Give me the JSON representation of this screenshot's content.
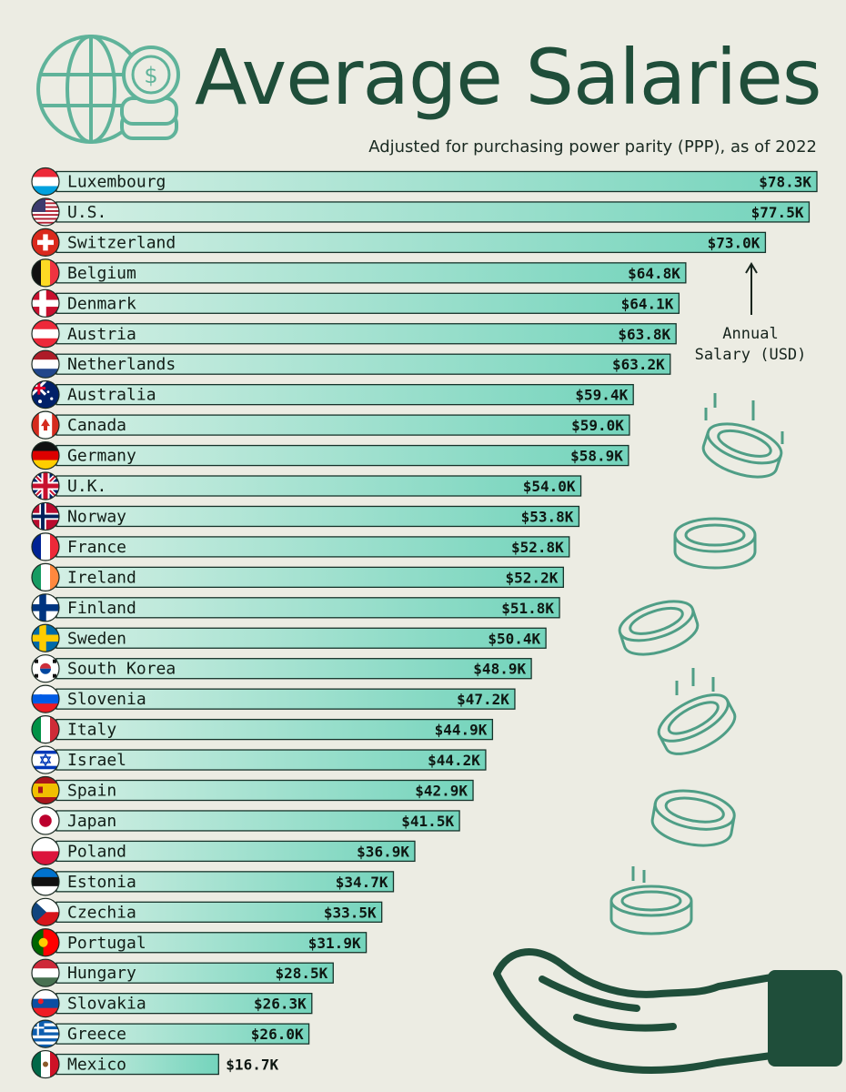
{
  "header": {
    "title": "Average Salaries",
    "subtitle": "Adjusted for purchasing power parity (PPP), as of 2022"
  },
  "annotation": {
    "line1": "Annual",
    "line2": "Salary (USD)"
  },
  "colors": {
    "bar_start": "#d3efe4",
    "bar_end": "#74d4bc",
    "bar_outline": "#16332a",
    "title": "#1f4e3a",
    "background": "#ecece3",
    "decor": "#4f9e86"
  },
  "chart_data": {
    "type": "bar",
    "orientation": "horizontal",
    "title": "Average Salaries",
    "subtitle": "Adjusted for purchasing power parity (PPP), as of 2022",
    "xlabel": "Annual Salary (USD)",
    "ylabel": "",
    "unit": "thousand USD",
    "xlim": [
      0,
      78.3
    ],
    "grid": false,
    "legend": "none",
    "categories": [
      "Luxembourg",
      "U.S.",
      "Switzerland",
      "Belgium",
      "Denmark",
      "Austria",
      "Netherlands",
      "Australia",
      "Canada",
      "Germany",
      "U.K.",
      "Norway",
      "France",
      "Ireland",
      "Finland",
      "Sweden",
      "South Korea",
      "Slovenia",
      "Italy",
      "Israel",
      "Spain",
      "Japan",
      "Poland",
      "Estonia",
      "Czechia",
      "Portugal",
      "Hungary",
      "Slovakia",
      "Greece",
      "Mexico"
    ],
    "values": [
      78.3,
      77.5,
      73.0,
      64.8,
      64.1,
      63.8,
      63.2,
      59.4,
      59.0,
      58.9,
      54.0,
      53.8,
      52.8,
      52.2,
      51.8,
      50.4,
      48.9,
      47.2,
      44.9,
      44.2,
      42.9,
      41.5,
      36.9,
      34.7,
      33.5,
      31.9,
      28.5,
      26.3,
      26.0,
      16.7
    ],
    "value_labels": [
      "$78.3K",
      "$77.5K",
      "$73.0K",
      "$64.8K",
      "$64.1K",
      "$63.8K",
      "$63.2K",
      "$59.4K",
      "$59.0K",
      "$58.9K",
      "$54.0K",
      "$53.8K",
      "$52.8K",
      "$52.2K",
      "$51.8K",
      "$50.4K",
      "$48.9K",
      "$47.2K",
      "$44.9K",
      "$44.2K",
      "$42.9K",
      "$41.5K",
      "$36.9K",
      "$34.7K",
      "$33.5K",
      "$31.9K",
      "$28.5K",
      "$26.3K",
      "$26.0K",
      "$16.7K"
    ],
    "flag_icons": [
      "luxembourg-flag-icon",
      "us-flag-icon",
      "switzerland-flag-icon",
      "belgium-flag-icon",
      "denmark-flag-icon",
      "austria-flag-icon",
      "netherlands-flag-icon",
      "australia-flag-icon",
      "canada-flag-icon",
      "germany-flag-icon",
      "uk-flag-icon",
      "norway-flag-icon",
      "france-flag-icon",
      "ireland-flag-icon",
      "finland-flag-icon",
      "sweden-flag-icon",
      "south-korea-flag-icon",
      "slovenia-flag-icon",
      "italy-flag-icon",
      "israel-flag-icon",
      "spain-flag-icon",
      "japan-flag-icon",
      "poland-flag-icon",
      "estonia-flag-icon",
      "czechia-flag-icon",
      "portugal-flag-icon",
      "hungary-flag-icon",
      "slovakia-flag-icon",
      "greece-flag-icon",
      "mexico-flag-icon"
    ]
  }
}
